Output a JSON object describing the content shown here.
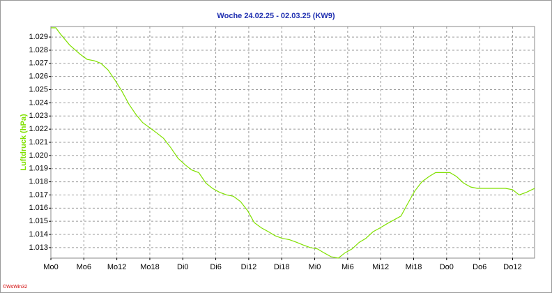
{
  "chart_data": {
    "type": "line",
    "title": "Woche 24.02.25 - 02.03.25 (KW9)",
    "y_label": "Luftdruck (hPa)",
    "watermark": "©WsWin32",
    "grid": true,
    "xlim": [
      0,
      88
    ],
    "ylim": [
      1.0122,
      1.0298
    ],
    "xticks": [
      {
        "value": 0,
        "label": "Mo0"
      },
      {
        "value": 6,
        "label": "Mo6"
      },
      {
        "value": 12,
        "label": "Mo12"
      },
      {
        "value": 18,
        "label": "Mo18"
      },
      {
        "value": 24,
        "label": "Di0"
      },
      {
        "value": 30,
        "label": "Di6"
      },
      {
        "value": 36,
        "label": "Di12"
      },
      {
        "value": 42,
        "label": "Di18"
      },
      {
        "value": 48,
        "label": "Mi0"
      },
      {
        "value": 54,
        "label": "Mi6"
      },
      {
        "value": 60,
        "label": "Mi12"
      },
      {
        "value": 66,
        "label": "Mi18"
      },
      {
        "value": 72,
        "label": "Do0"
      },
      {
        "value": 78,
        "label": "Do6"
      },
      {
        "value": 84,
        "label": "Do12"
      }
    ],
    "yticks": [
      1.013,
      1.014,
      1.015,
      1.016,
      1.017,
      1.018,
      1.019,
      {
        "value": 1.02,
        "label": "1.020"
      },
      1.021,
      1.022,
      1.023,
      1.024,
      1.025,
      1.026,
      1.027,
      1.028,
      1.029
    ],
    "x": [
      0,
      0.9,
      1.8,
      3.4,
      5.3,
      6.6,
      7.9,
      9.1,
      10.4,
      11.7,
      12.9,
      14.2,
      15.5,
      16.7,
      18.0,
      19.3,
      20.5,
      21.8,
      23.1,
      24.4,
      25.6,
      26.9,
      28.2,
      29.4,
      30.7,
      32.0,
      33.2,
      34.5,
      35.8,
      37.0,
      38.3,
      39.6,
      40.8,
      42.1,
      43.4,
      44.7,
      45.9,
      47.2,
      48.5,
      49.7,
      51.0,
      52.3,
      53.5,
      54.8,
      56.1,
      57.3,
      58.6,
      59.9,
      61.1,
      62.4,
      63.7,
      65.0,
      66.2,
      67.5,
      68.8,
      70.0,
      71.3,
      72.6,
      73.8,
      75.1,
      76.4,
      77.6,
      78.9,
      80.2,
      81.4,
      82.7,
      84.0,
      85.2,
      86.5,
      88.0
    ],
    "series": [
      {
        "name": "Luftdruck (hPa)",
        "color": "#80e000",
        "values": [
          1.0297,
          1.0297,
          1.0292,
          1.0284,
          1.0277,
          1.0273,
          1.0272,
          1.027,
          1.0265,
          1.0257,
          1.0249,
          1.0239,
          1.0231,
          1.0225,
          1.0221,
          1.0217,
          1.0213,
          1.0206,
          1.0198,
          1.0193,
          1.0189,
          1.0187,
          1.0179,
          1.0175,
          1.0172,
          1.017,
          1.0169,
          1.0165,
          1.0158,
          1.0149,
          1.0145,
          1.0142,
          1.0139,
          1.0137,
          1.0136,
          1.0134,
          1.0132,
          1.013,
          1.0129,
          1.0126,
          1.0123,
          1.0122,
          1.0126,
          1.0129,
          1.0134,
          1.0137,
          1.0142,
          1.0145,
          1.0148,
          1.0151,
          1.0154,
          1.0164,
          1.0173,
          1.018,
          1.0184,
          1.0187,
          1.0187,
          1.0187,
          1.0184,
          1.0179,
          1.0176,
          1.0175,
          1.0175,
          1.0175,
          1.0175,
          1.0175,
          1.0174,
          1.017,
          1.0172,
          1.0175
        ]
      }
    ]
  }
}
